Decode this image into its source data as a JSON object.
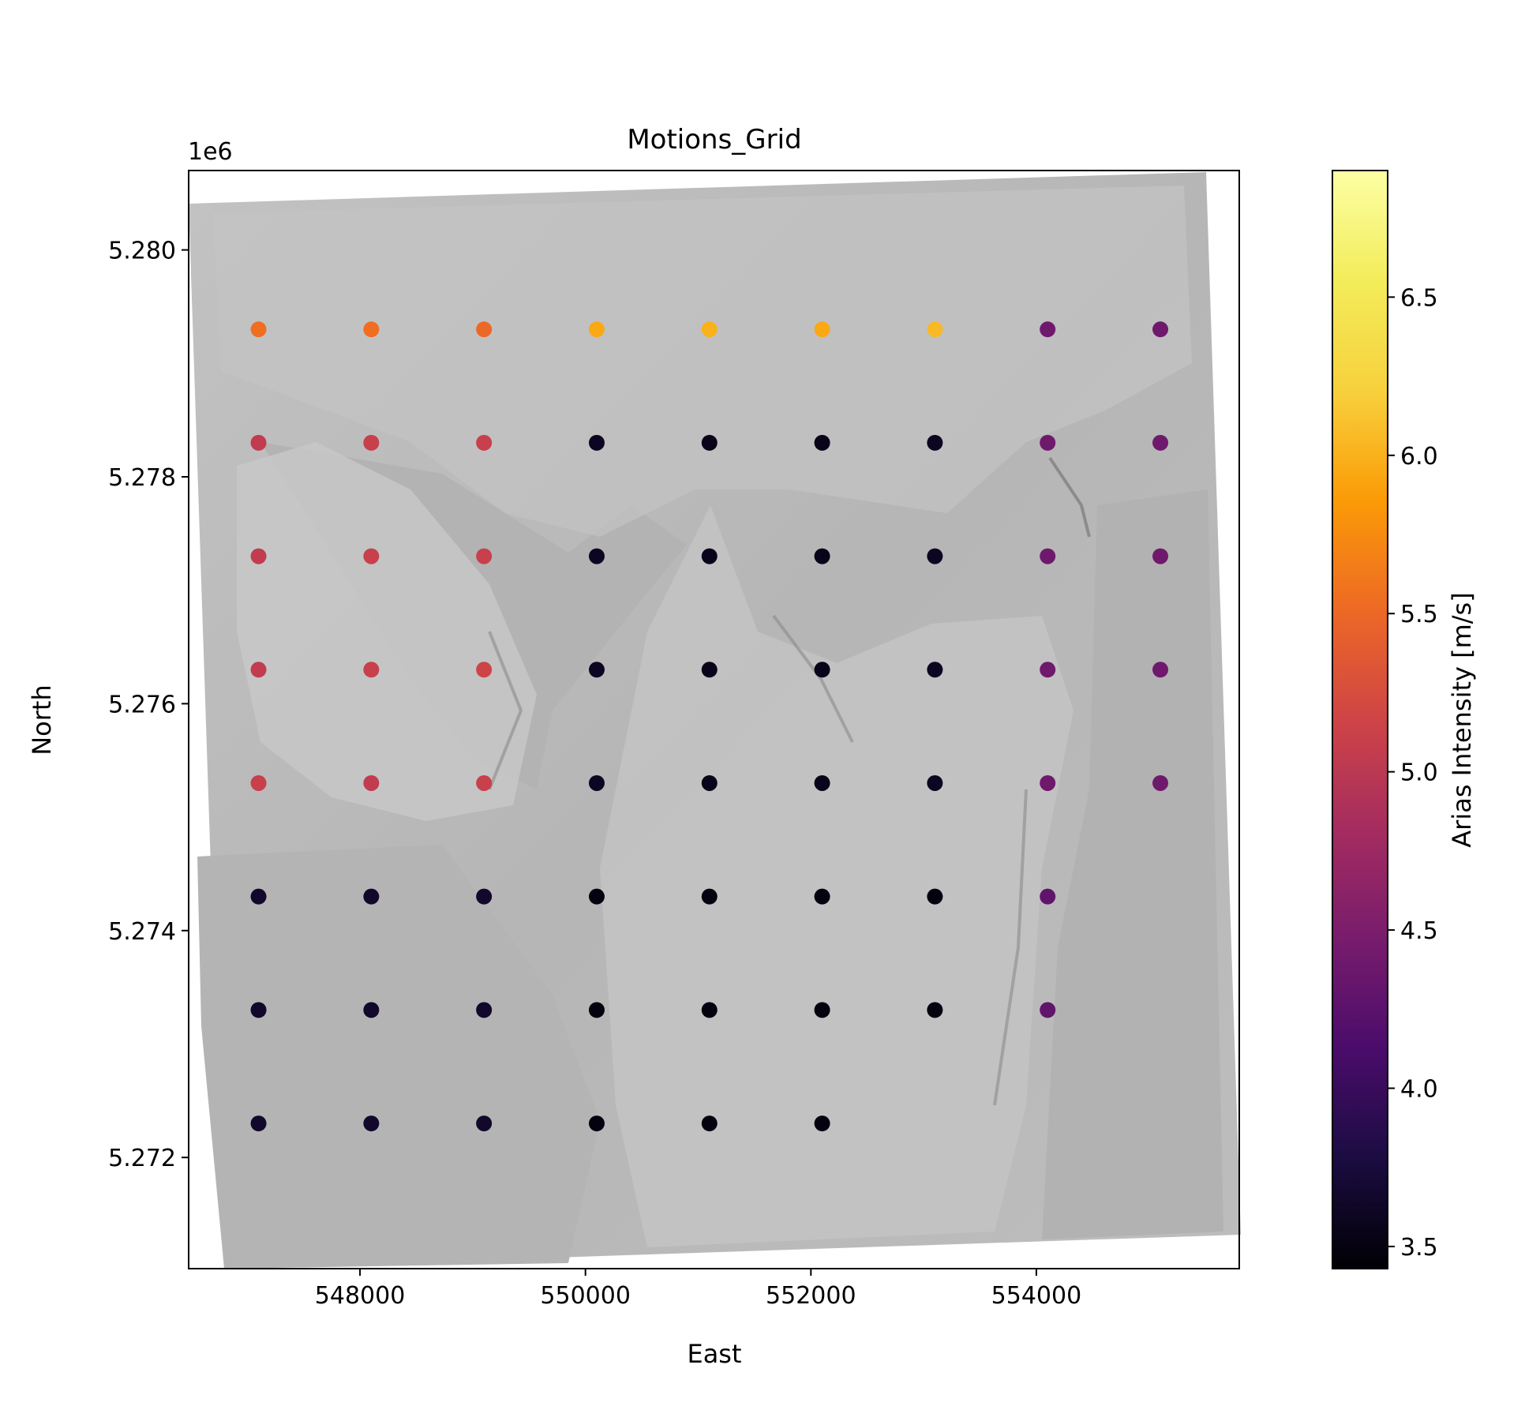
{
  "chart_data": {
    "type": "scatter",
    "title": "Motions_Grid",
    "xlabel": "East",
    "ylabel": "North",
    "y_offset_label": "1e6",
    "xlim": [
      546480,
      555800
    ],
    "ylim": [
      5271020,
      5280700
    ],
    "x_ticks": [
      548000,
      550000,
      552000,
      554000
    ],
    "x_tick_labels": [
      "548000",
      "550000",
      "552000",
      "554000"
    ],
    "y_ticks": [
      5272000,
      5274000,
      5276000,
      5278000,
      5280000
    ],
    "y_tick_labels": [
      "5.272",
      "5.274",
      "5.276",
      "5.278",
      "5.280"
    ],
    "grid": false,
    "background": "grayscale hillshade terrain map",
    "colorbar": {
      "label": "Arias Intensity [m/s]",
      "colormap": "inferno",
      "range": [
        3.43,
        6.9
      ],
      "ticks": [
        3.5,
        4.0,
        4.5,
        5.0,
        5.5,
        6.0,
        6.5
      ],
      "tick_labels": [
        "3.5",
        "4.0",
        "4.5",
        "5.0",
        "5.5",
        "6.0",
        "6.5"
      ]
    },
    "grid_x": [
      547100,
      548100,
      549100,
      550100,
      551100,
      552100,
      553100,
      554100,
      555100
    ],
    "grid_y": [
      5279300,
      5278300,
      5277300,
      5276300,
      5275300,
      5274300,
      5273300,
      5272300
    ],
    "values": [
      [
        5.55,
        5.55,
        5.5,
        5.95,
        6.0,
        5.95,
        6.05,
        4.4,
        4.4
      ],
      [
        5.05,
        5.1,
        5.1,
        3.6,
        3.55,
        3.55,
        3.6,
        4.4,
        4.4
      ],
      [
        5.05,
        5.1,
        5.1,
        3.6,
        3.55,
        3.55,
        3.6,
        4.4,
        4.4
      ],
      [
        5.05,
        5.1,
        5.15,
        3.6,
        3.55,
        3.55,
        3.6,
        4.4,
        4.4
      ],
      [
        5.1,
        5.05,
        5.1,
        3.6,
        3.55,
        3.55,
        3.6,
        4.4,
        4.4
      ],
      [
        3.65,
        3.65,
        3.65,
        3.5,
        3.5,
        3.5,
        3.5,
        4.3,
        null
      ],
      [
        3.65,
        3.65,
        3.65,
        3.5,
        3.5,
        3.5,
        3.5,
        4.3,
        null
      ],
      [
        3.65,
        3.65,
        3.65,
        3.5,
        3.5,
        3.5,
        null,
        null,
        null
      ]
    ]
  }
}
